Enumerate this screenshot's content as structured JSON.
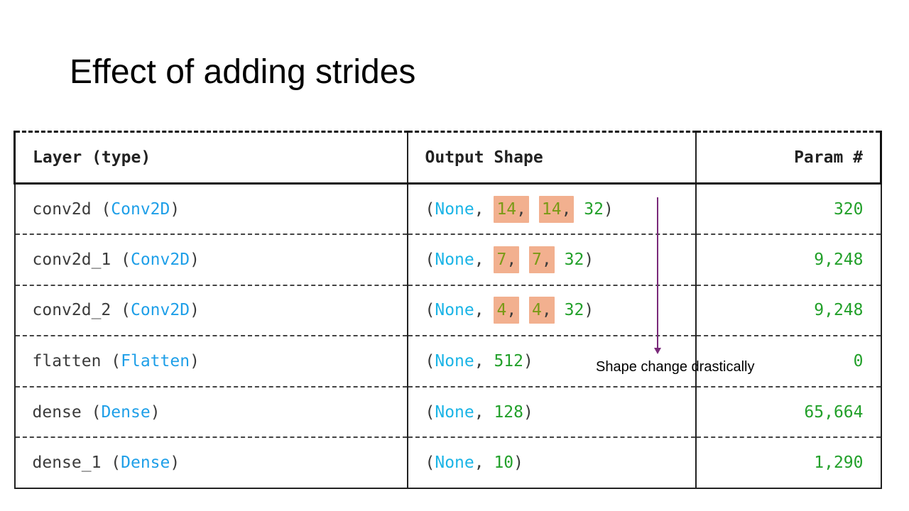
{
  "title": "Effect of adding strides",
  "table": {
    "headers": {
      "layer": "Layer (type)",
      "shape": "Output Shape",
      "param": "Param #"
    },
    "rows": [
      {
        "name": "conv2d",
        "type": "Conv2D",
        "none": "None",
        "dims": [
          "14",
          "14",
          "32"
        ],
        "highlighted": [
          true,
          true,
          false
        ],
        "params": "320"
      },
      {
        "name": "conv2d_1",
        "type": "Conv2D",
        "none": "None",
        "dims": [
          "7",
          "7",
          "32"
        ],
        "highlighted": [
          true,
          true,
          false
        ],
        "params": "9,248"
      },
      {
        "name": "conv2d_2",
        "type": "Conv2D",
        "none": "None",
        "dims": [
          "4",
          "4",
          "32"
        ],
        "highlighted": [
          true,
          true,
          false
        ],
        "params": "9,248"
      },
      {
        "name": "flatten",
        "type": "Flatten",
        "none": "None",
        "dims": [
          "512"
        ],
        "highlighted": [
          false
        ],
        "params": "0"
      },
      {
        "name": "dense",
        "type": "Dense",
        "none": "None",
        "dims": [
          "128"
        ],
        "highlighted": [
          false
        ],
        "params": "65,664"
      },
      {
        "name": "dense_1",
        "type": "Dense",
        "none": "None",
        "dims": [
          "10"
        ],
        "highlighted": [
          false
        ],
        "params": "1,290"
      }
    ]
  },
  "annotation": "Shape change drastically",
  "colors": {
    "class_name": "#1e9fe8",
    "number": "#22a02a",
    "highlight": "#f2b08f",
    "arrow": "#7a2a7a"
  }
}
